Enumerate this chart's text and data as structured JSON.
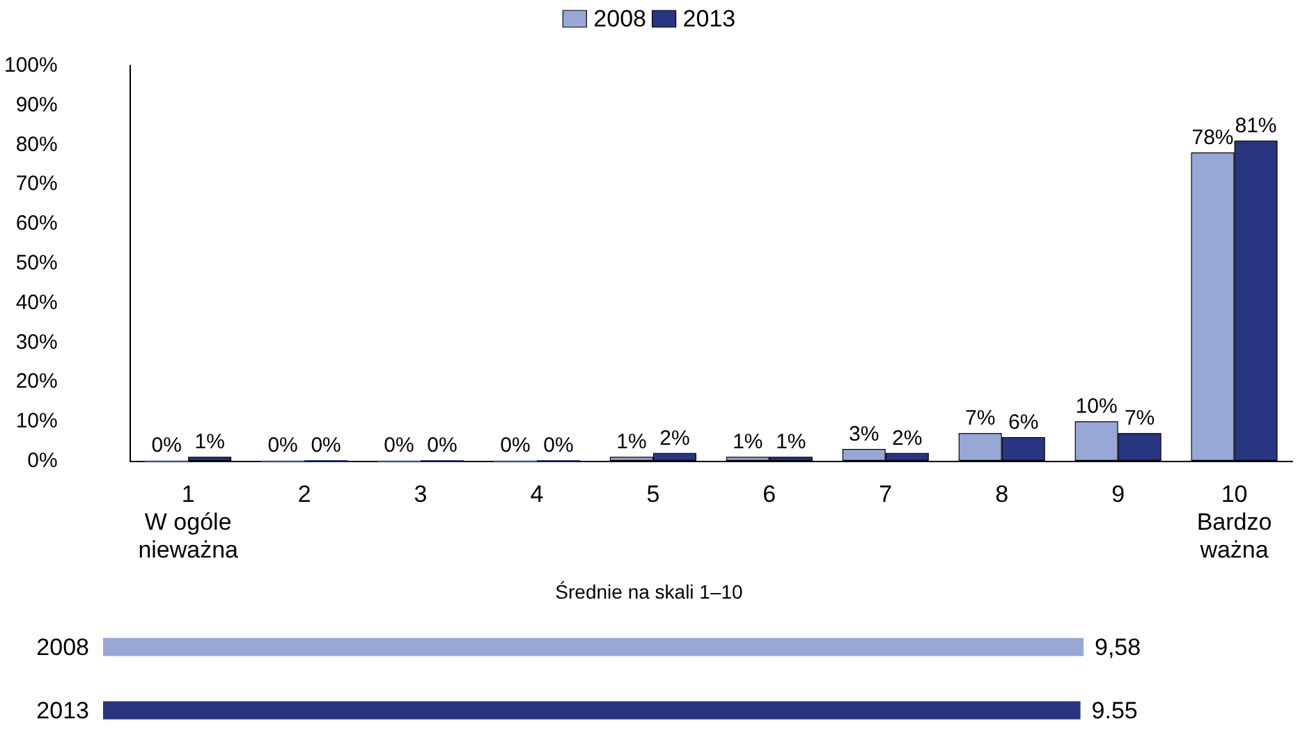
{
  "chart_data": [
    {
      "type": "bar",
      "categories": [
        "1\nW ogóle\nnieważna",
        "2",
        "3",
        "4",
        "5",
        "6",
        "7",
        "8",
        "9",
        "10\nBardzo\nważna"
      ],
      "series": [
        {
          "name": "2008",
          "color": "#97a8d6",
          "values": [
            0,
            0,
            0,
            0,
            1,
            1,
            3,
            7,
            10,
            78
          ],
          "value_labels": [
            "0%",
            "0%",
            "0%",
            "0%",
            "1%",
            "1%",
            "3%",
            "7%",
            "10%",
            "78%"
          ]
        },
        {
          "name": "2013",
          "color": "#283580",
          "values": [
            1,
            0,
            0,
            0,
            2,
            1,
            2,
            6,
            7,
            81
          ],
          "value_labels": [
            "1%",
            "0%",
            "0%",
            "0%",
            "2%",
            "1%",
            "2%",
            "6%",
            "7%",
            "81%"
          ]
        }
      ],
      "ylim": [
        0,
        100
      ],
      "yticks": [
        {
          "value": 0,
          "label": "0%"
        },
        {
          "value": 10,
          "label": "10%"
        },
        {
          "value": 20,
          "label": "20%"
        },
        {
          "value": 30,
          "label": "30%"
        },
        {
          "value": 40,
          "label": "40%"
        },
        {
          "value": 50,
          "label": "50%"
        },
        {
          "value": 60,
          "label": "60%"
        },
        {
          "value": 70,
          "label": "70%"
        },
        {
          "value": 80,
          "label": "80%"
        },
        {
          "value": 90,
          "label": "90%"
        },
        {
          "value": 100,
          "label": "100%"
        }
      ],
      "grid": false,
      "legend": "top"
    },
    {
      "type": "bar",
      "orientation": "horizontal",
      "title": "Średnie na skali 1–10",
      "categories": [
        "2008",
        "2013"
      ],
      "values": [
        9.58,
        9.55
      ],
      "colors": [
        "#97a8d6",
        "#283580"
      ],
      "value_labels": [
        "9,58",
        "9.55"
      ],
      "tick_labels": "y",
      "grid": false,
      "legend": false
    }
  ]
}
